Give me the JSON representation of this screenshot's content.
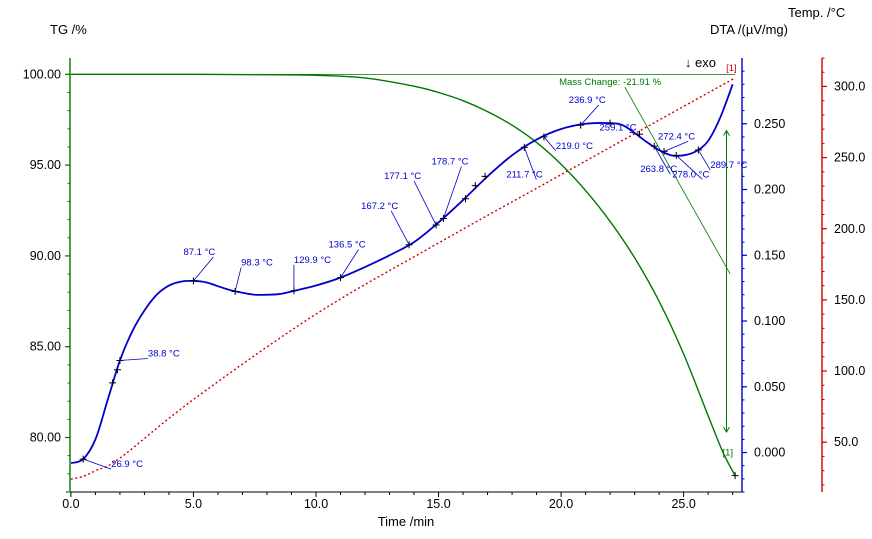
{
  "chart_data": {
    "type": "line",
    "title": "",
    "xlabel": "Time /min",
    "xlim": [
      -0.2,
      27.3
    ],
    "x_ticks": [
      0.0,
      5.0,
      10.0,
      15.0,
      20.0,
      25.0
    ],
    "x_tick_labels": [
      "0.0",
      "5.0",
      "10.0",
      "15.0",
      "20.0",
      "25.0"
    ],
    "axes": {
      "tg": {
        "label": "TG /%",
        "color": "#007700",
        "range": [
          77.0,
          100.9
        ],
        "ticks": [
          80.0,
          85.0,
          90.0,
          95.0,
          100.0
        ],
        "tick_labels": [
          "80.00",
          "85.00",
          "90.00",
          "95.00",
          "100.00"
        ]
      },
      "dta": {
        "label": "DTA /(µV/mg)",
        "color": "#0000cc",
        "range": [
          -0.03,
          0.3
        ],
        "ticks": [
          0.0,
          0.05,
          0.1,
          0.15,
          0.2,
          0.25
        ],
        "tick_labels": [
          "0.000",
          "0.050",
          "0.100",
          "0.150",
          "0.200",
          "0.250"
        ],
        "exo_label": "↓ exo"
      },
      "temp": {
        "label": "Temp. /°C",
        "color": "#cc0000",
        "range": [
          15.0,
          320.0
        ],
        "ticks": [
          50.0,
          100.0,
          150.0,
          200.0,
          250.0,
          300.0
        ],
        "tick_labels": [
          "50.0",
          "100.0",
          "150.0",
          "200.0",
          "250.0",
          "300.0"
        ]
      }
    },
    "series": [
      {
        "axis": "tg",
        "color": "#007700",
        "points": [
          [
            0,
            100.0
          ],
          [
            2,
            100.0
          ],
          [
            5,
            100.0
          ],
          [
            8,
            99.98
          ],
          [
            10,
            99.95
          ],
          [
            12,
            99.8
          ],
          [
            14,
            99.35
          ],
          [
            15,
            99.0
          ],
          [
            16,
            98.55
          ],
          [
            17,
            97.95
          ],
          [
            18,
            97.2
          ],
          [
            19,
            96.25
          ],
          [
            20,
            95.05
          ],
          [
            21,
            93.6
          ],
          [
            22,
            91.9
          ],
          [
            23,
            89.9
          ],
          [
            24,
            87.5
          ],
          [
            25,
            84.6
          ],
          [
            26,
            81.2
          ],
          [
            26.6,
            79.2
          ],
          [
            27.1,
            77.9
          ]
        ]
      },
      {
        "axis": "dta",
        "color": "#0000cc",
        "points": [
          [
            0,
            -0.008
          ],
          [
            0.5,
            -0.005
          ],
          [
            1.0,
            0.01
          ],
          [
            1.5,
            0.04
          ],
          [
            2.0,
            0.07
          ],
          [
            2.5,
            0.092
          ],
          [
            3.0,
            0.108
          ],
          [
            3.5,
            0.12
          ],
          [
            4.0,
            0.127
          ],
          [
            4.5,
            0.13
          ],
          [
            5.0,
            0.1305
          ],
          [
            5.5,
            0.1295
          ],
          [
            6.0,
            0.1265
          ],
          [
            6.5,
            0.1235
          ],
          [
            7.0,
            0.1215
          ],
          [
            7.5,
            0.12
          ],
          [
            8.0,
            0.12
          ],
          [
            8.5,
            0.1205
          ],
          [
            9.0,
            0.1225
          ],
          [
            10.0,
            0.127
          ],
          [
            11.0,
            0.133
          ],
          [
            12.0,
            0.141
          ],
          [
            13.0,
            0.15
          ],
          [
            14.0,
            0.16
          ],
          [
            15.0,
            0.175
          ],
          [
            16.0,
            0.192
          ],
          [
            17.0,
            0.21
          ],
          [
            18.0,
            0.226
          ],
          [
            19.0,
            0.238
          ],
          [
            20.0,
            0.246
          ],
          [
            21.0,
            0.25
          ],
          [
            22.0,
            0.2505
          ],
          [
            22.5,
            0.249
          ],
          [
            23.0,
            0.243
          ],
          [
            23.5,
            0.236
          ],
          [
            24.0,
            0.23
          ],
          [
            24.5,
            0.226
          ],
          [
            25.0,
            0.226
          ],
          [
            25.5,
            0.229
          ],
          [
            26.0,
            0.237
          ],
          [
            26.5,
            0.255
          ],
          [
            27.0,
            0.28
          ]
        ]
      },
      {
        "axis": "temp",
        "color": "#cc0000",
        "dashed": true,
        "points": [
          [
            0,
            24.0
          ],
          [
            0.5,
            26.0
          ],
          [
            1.0,
            30.0
          ],
          [
            2.0,
            38.8
          ],
          [
            5.0,
            80.0
          ],
          [
            10.0,
            140.0
          ],
          [
            15.0,
            190.0
          ],
          [
            20.0,
            238.0
          ],
          [
            25.0,
            286.0
          ],
          [
            27.1,
            306.0
          ]
        ]
      }
    ],
    "annotations": [
      {
        "text": "26.9 °C",
        "t": 0.5,
        "axis": "dta",
        "v": -0.005,
        "color": "#0000cc"
      },
      {
        "text": "38.8 °C",
        "t": 2.0,
        "axis": "dta",
        "v": 0.07,
        "color": "#0000cc"
      },
      {
        "text": "87.1 °C",
        "t": 5.0,
        "axis": "dta",
        "v": 0.1305,
        "color": "#0000cc"
      },
      {
        "text": "98.3 °C",
        "t": 6.7,
        "axis": "dta",
        "v": 0.1225,
        "color": "#0000cc"
      },
      {
        "text": "129.9 °C",
        "t": 9.1,
        "axis": "dta",
        "v": 0.123,
        "color": "#0000cc"
      },
      {
        "text": "136.5 °C",
        "t": 11.0,
        "axis": "dta",
        "v": 0.133,
        "color": "#0000cc"
      },
      {
        "text": "167.2 °C",
        "t": 13.8,
        "axis": "dta",
        "v": 0.158,
        "color": "#0000cc"
      },
      {
        "text": "177.1 °C",
        "t": 14.9,
        "axis": "dta",
        "v": 0.173,
        "color": "#0000cc"
      },
      {
        "text": "178.7 °C",
        "t": 15.2,
        "axis": "dta",
        "v": 0.178,
        "color": "#0000cc"
      },
      {
        "text": "211.7 °C",
        "t": 18.5,
        "axis": "dta",
        "v": 0.232,
        "color": "#0000cc"
      },
      {
        "text": "219.0 °C",
        "t": 19.3,
        "axis": "dta",
        "v": 0.24,
        "color": "#0000cc"
      },
      {
        "text": "236.9 °C",
        "t": 20.8,
        "axis": "dta",
        "v": 0.249,
        "color": "#0000cc"
      },
      {
        "text": "259.1 °C",
        "t": 23.2,
        "axis": "dta",
        "v": 0.242,
        "color": "#0000cc"
      },
      {
        "text": "263.8 °C",
        "t": 23.8,
        "axis": "dta",
        "v": 0.233,
        "color": "#0000cc"
      },
      {
        "text": "272.4 °C",
        "t": 24.2,
        "axis": "dta",
        "v": 0.229,
        "color": "#0000cc"
      },
      {
        "text": "278.0 °C",
        "t": 24.7,
        "axis": "dta",
        "v": 0.226,
        "color": "#0000cc"
      },
      {
        "text": "289.7 °C",
        "t": 25.6,
        "axis": "dta",
        "v": 0.23,
        "color": "#0000cc"
      },
      {
        "text": "Mass Change: -21.91 %",
        "t": 22.0,
        "axis": "tg",
        "v": 99.2,
        "color": "#007700"
      },
      {
        "text": "[1]",
        "t": 26.95,
        "axis": "temp",
        "v": 311.0,
        "color": "#cc0000"
      },
      {
        "text": "[1]",
        "t": 26.8,
        "axis": "tg",
        "v": 79.0,
        "color": "#007700"
      }
    ]
  }
}
